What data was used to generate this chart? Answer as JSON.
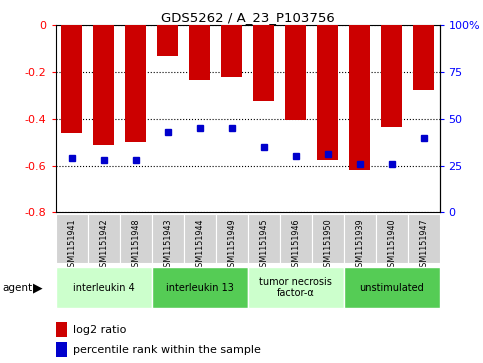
{
  "title": "GDS5262 / A_23_P103756",
  "samples": [
    "GSM1151941",
    "GSM1151942",
    "GSM1151948",
    "GSM1151943",
    "GSM1151944",
    "GSM1151949",
    "GSM1151945",
    "GSM1151946",
    "GSM1151950",
    "GSM1151939",
    "GSM1151940",
    "GSM1151947"
  ],
  "log2_ratio": [
    -0.46,
    -0.51,
    -0.5,
    -0.13,
    -0.235,
    -0.22,
    -0.325,
    -0.405,
    -0.575,
    -0.62,
    -0.435,
    -0.275
  ],
  "percentile_rank": [
    29,
    28,
    28,
    43,
    45,
    45,
    35,
    30,
    31,
    26,
    26,
    40
  ],
  "agents": [
    {
      "label": "interleukin 4",
      "cols": [
        0,
        1,
        2
      ],
      "color": "#ccffcc"
    },
    {
      "label": "interleukin 13",
      "cols": [
        3,
        4,
        5
      ],
      "color": "#55cc55"
    },
    {
      "label": "tumor necrosis\nfactor-α",
      "cols": [
        6,
        7,
        8
      ],
      "color": "#ccffcc"
    },
    {
      "label": "unstimulated",
      "cols": [
        9,
        10,
        11
      ],
      "color": "#55cc55"
    }
  ],
  "bar_color": "#cc0000",
  "dot_color": "#0000cc",
  "ylim_left": [
    -0.8,
    0.0
  ],
  "ylim_right": [
    0,
    100
  ],
  "yticks_left": [
    0.0,
    -0.2,
    -0.4,
    -0.6,
    -0.8
  ],
  "yticks_right": [
    0,
    25,
    50,
    75,
    100
  ],
  "grid_color": "#000000"
}
